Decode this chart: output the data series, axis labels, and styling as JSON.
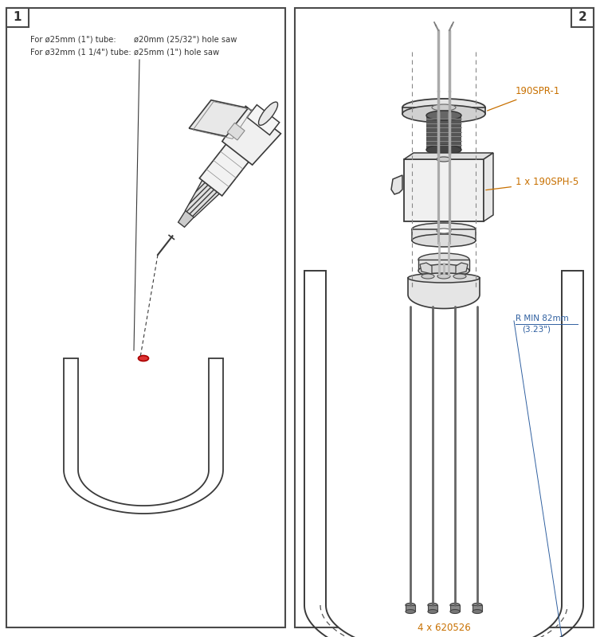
{
  "bg_color": "#ffffff",
  "border_color": "#4a4a4a",
  "text_color": "#333333",
  "orange_color": "#c87000",
  "blue_color": "#3060a0",
  "panel1_label": "1",
  "panel2_label": "2",
  "text_line1a": "For ø25mm (1\") tube:",
  "text_line1b": "ø20mm (25/32\") hole saw",
  "text_line2a": "For ø32mm (1 1/4\") tube:",
  "text_line2b": "ø25mm (1\") hole saw",
  "label_190spr1": "190SPR-1",
  "label_1905ph5": "1 x 190SPH-5",
  "label_rmin": "R MIN 82mm",
  "label_rmin2": "(3.23\")",
  "label_620526": "4 x 620526"
}
